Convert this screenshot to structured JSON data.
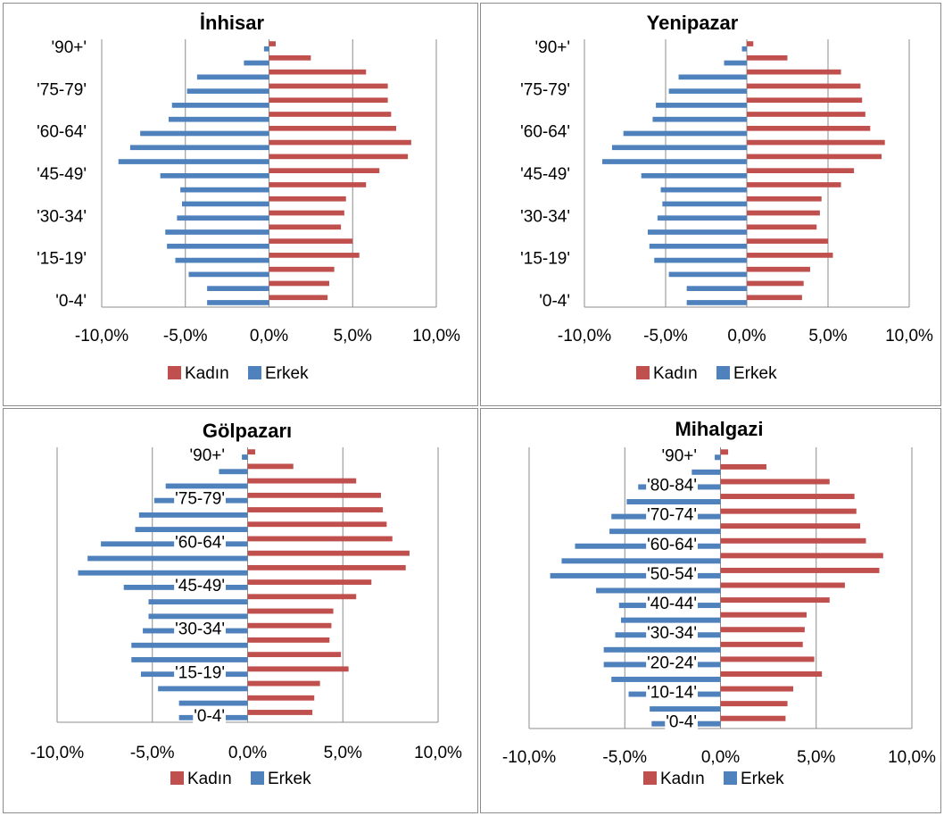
{
  "legend": {
    "kadin": "Kadın",
    "erkek": "Erkek"
  },
  "colors": {
    "kadin": "#c0504d",
    "erkek": "#4f81bd",
    "grid": "#8c8c8c"
  },
  "chart_data": [
    {
      "type": "bar",
      "orientation": "horizontal",
      "title": "İnhisar",
      "age_tick_labels": [
        "'0-4'",
        "'15-19'",
        "'30-34'",
        "'45-49'",
        "'60-64'",
        "'75-79'",
        "'90+'"
      ],
      "x_tick_labels": [
        "-10,0%",
        "-5,0%",
        "0,0%",
        "5,0%",
        "10,0%"
      ],
      "xlim": [
        -10,
        10
      ],
      "grid": true,
      "legend_position": "bottom",
      "series": [
        {
          "name": "Kadın",
          "values": [
            3.5,
            3.6,
            3.9,
            5.4,
            5.0,
            4.3,
            4.5,
            4.6,
            5.8,
            6.6,
            8.3,
            8.5,
            7.6,
            7.3,
            7.1,
            7.1,
            5.8,
            2.5,
            0.4
          ]
        },
        {
          "name": "Erkek",
          "values": [
            -3.7,
            -3.7,
            -4.8,
            -5.6,
            -6.1,
            -6.2,
            -5.5,
            -5.2,
            -5.3,
            -6.5,
            -9.0,
            -8.3,
            -7.7,
            -6.0,
            -5.8,
            -4.9,
            -4.3,
            -1.5,
            -0.3
          ]
        }
      ]
    },
    {
      "type": "bar",
      "orientation": "horizontal",
      "title": "Yenipazar",
      "age_tick_labels": [
        "'0-4'",
        "'15-19'",
        "'30-34'",
        "'45-49'",
        "'60-64'",
        "'75-79'",
        "'90+'"
      ],
      "x_tick_labels": [
        "-10,0%",
        "-5,0%",
        "0,0%",
        "5,0%",
        "10,0%"
      ],
      "xlim": [
        -10,
        10
      ],
      "grid": true,
      "legend_position": "bottom",
      "series": [
        {
          "name": "Kadın",
          "values": [
            3.4,
            3.5,
            3.9,
            5.3,
            5.0,
            4.3,
            4.5,
            4.6,
            5.8,
            6.6,
            8.3,
            8.5,
            7.6,
            7.3,
            7.1,
            7.0,
            5.8,
            2.5,
            0.4
          ]
        },
        {
          "name": "Erkek",
          "values": [
            -3.7,
            -3.7,
            -4.8,
            -5.7,
            -6.0,
            -6.1,
            -5.5,
            -5.2,
            -5.3,
            -6.5,
            -8.9,
            -8.3,
            -7.6,
            -5.8,
            -5.6,
            -4.8,
            -4.2,
            -1.4,
            -0.3
          ]
        }
      ]
    },
    {
      "type": "bar",
      "orientation": "horizontal",
      "title": "Gölpazarı",
      "age_tick_labels": [
        "'0-4'",
        "'15-19'",
        "'30-34'",
        "'45-49'",
        "'60-64'",
        "'75-79'",
        "'90+'"
      ],
      "x_tick_labels": [
        "-10,0%",
        "-5,0%",
        "0,0%",
        "5,0%",
        "10,0%"
      ],
      "xlim": [
        -10,
        10
      ],
      "grid": true,
      "legend_position": "bottom",
      "series": [
        {
          "name": "Kadın",
          "values": [
            3.4,
            3.5,
            3.8,
            5.3,
            4.9,
            4.3,
            4.4,
            4.5,
            5.7,
            6.5,
            8.3,
            8.5,
            7.6,
            7.3,
            7.1,
            7.0,
            5.7,
            2.4,
            0.4
          ]
        },
        {
          "name": "Erkek",
          "values": [
            -3.6,
            -3.6,
            -4.7,
            -5.6,
            -6.1,
            -6.1,
            -5.5,
            -5.2,
            -5.2,
            -6.5,
            -8.9,
            -8.4,
            -7.7,
            -5.9,
            -5.7,
            -4.9,
            -4.3,
            -1.5,
            -0.3
          ]
        }
      ]
    },
    {
      "type": "bar",
      "orientation": "horizontal",
      "title": "Mihalgazi",
      "age_tick_labels": [
        "'0-4'",
        "'10-14'",
        "'20-24'",
        "'30-34'",
        "'40-44'",
        "'50-54'",
        "'60-64'",
        "'70-74'",
        "'80-84'",
        "'90+'"
      ],
      "x_tick_labels": [
        "-10,0%",
        "-5,0%",
        "0,0%",
        "5,0%",
        "10,0%"
      ],
      "xlim": [
        -10,
        10
      ],
      "grid": true,
      "legend_position": "bottom",
      "series": [
        {
          "name": "Kadın",
          "values": [
            3.4,
            3.5,
            3.8,
            5.3,
            4.9,
            4.3,
            4.4,
            4.5,
            5.7,
            6.5,
            8.3,
            8.5,
            7.6,
            7.3,
            7.1,
            7.0,
            5.7,
            2.4,
            0.4
          ]
        },
        {
          "name": "Erkek",
          "values": [
            -3.6,
            -3.7,
            -4.8,
            -5.7,
            -6.1,
            -6.1,
            -5.5,
            -5.2,
            -5.3,
            -6.5,
            -8.9,
            -8.3,
            -7.6,
            -5.8,
            -5.7,
            -4.9,
            -4.3,
            -1.5,
            -0.3
          ]
        }
      ]
    }
  ]
}
